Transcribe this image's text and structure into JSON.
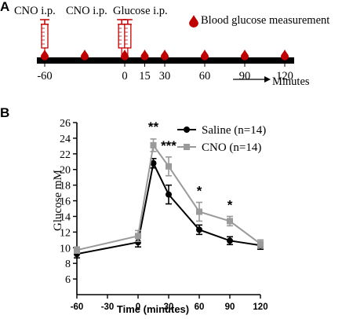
{
  "panel_a": {
    "letter": "A",
    "injection_labels": [
      "CNO i.p.",
      "CNO i.p.",
      "Glucose i.p."
    ],
    "legend_label": "Blood glucose measurement",
    "drop_times": [
      -60,
      -30,
      0,
      15,
      30,
      60,
      90,
      120
    ],
    "syringe_times": [
      -60,
      -0.5,
      0.5
    ],
    "tick_labels": [
      "-60",
      "0",
      "15",
      "30",
      "60",
      "90",
      "120"
    ],
    "tick_values": [
      -60,
      0,
      15,
      30,
      60,
      90,
      120
    ],
    "arrow_label": "Minutes",
    "colors": {
      "drop": "#c00000",
      "syringe": "#c00000",
      "timeline": "#000000"
    }
  },
  "panel_b": {
    "letter": "B"
  },
  "chart_data": {
    "type": "line",
    "xlabel": "Time (minutes)",
    "ylabel": "Glucose mM",
    "xlim": [
      -60,
      120
    ],
    "ylim": [
      4,
      26
    ],
    "xticks": [
      -60,
      -30,
      0,
      30,
      60,
      90,
      120
    ],
    "yticks": [
      6,
      8,
      10,
      12,
      14,
      16,
      18,
      20,
      22,
      24,
      26
    ],
    "x": [
      -60,
      0,
      15,
      30,
      60,
      90,
      120
    ],
    "legend_position": "top-right",
    "series": [
      {
        "name": "Saline (n=14)",
        "color": "#000000",
        "marker": "circle",
        "values": [
          9.2,
          10.7,
          20.8,
          16.8,
          12.3,
          10.9,
          10.3
        ],
        "errors": [
          0.5,
          0.6,
          0.6,
          1.2,
          0.6,
          0.5,
          0.5
        ]
      },
      {
        "name": "CNO (n=14)",
        "color": "#9a9a9a",
        "marker": "square",
        "values": [
          9.7,
          11.5,
          23.1,
          20.4,
          14.6,
          13.4,
          10.5
        ],
        "errors": [
          0.4,
          0.7,
          0.8,
          1.2,
          1.2,
          0.6,
          0.5
        ]
      }
    ],
    "annotations": [
      {
        "x": 15,
        "y": 24.9,
        "text": "**"
      },
      {
        "x": 30,
        "y": 22.5,
        "text": "***"
      },
      {
        "x": 60,
        "y": 16.7,
        "text": "*"
      },
      {
        "x": 90,
        "y": 14.9,
        "text": "*"
      }
    ]
  }
}
